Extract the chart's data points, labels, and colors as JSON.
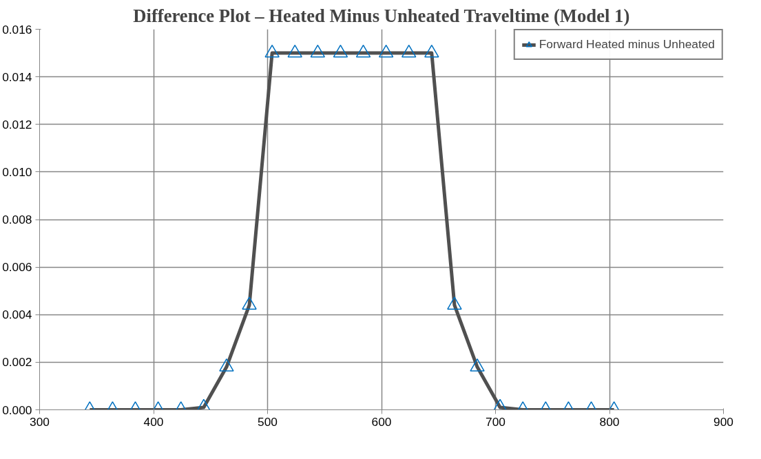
{
  "chart_data": {
    "type": "line",
    "title": "Difference Plot – Heated Minus Unheated Traveltime (Model 1)",
    "x": [
      344,
      364,
      384,
      404,
      424,
      444,
      464,
      484,
      504,
      524,
      544,
      564,
      584,
      604,
      624,
      644,
      664,
      684,
      704,
      724,
      744,
      764,
      784,
      804
    ],
    "series": [
      {
        "name": "Forward Heated minus Unheated",
        "color": "#505050",
        "colors": [
          "#0070c0",
          "#0070c0",
          "#0070c0",
          "#0070c0",
          "#0070c0",
          "#0070c0",
          "#0070c0",
          "#0070c0",
          "#0070c0",
          "#0070c0",
          "#0070c0",
          "#0070c0",
          "#0070c0",
          "#0070c0",
          "#0070c0",
          "#0070c0",
          "#0070c0",
          "#0070c0",
          "#0070c0",
          "#0070c0",
          "#0070c0",
          "#0070c0",
          "#0070c0",
          "#0070c0"
        ],
        "values": [
          0,
          0,
          0,
          0,
          0,
          0.0001,
          0.0018,
          0.0044,
          0.015,
          0.015,
          0.015,
          0.015,
          0.015,
          0.015,
          0.015,
          0.015,
          0.0044,
          0.0018,
          0.0001,
          0,
          0,
          0,
          0,
          0
        ]
      }
    ],
    "xlim": [
      300,
      900
    ],
    "xticks": [
      300,
      400,
      500,
      600,
      700,
      800,
      900
    ],
    "ylim": [
      0,
      0.016
    ],
    "yticks": [
      {
        "value": 0,
        "label": "0.000"
      },
      {
        "value": 0.002,
        "label": "0.002"
      },
      {
        "value": 0.004,
        "label": "0.004"
      },
      {
        "value": 0.006,
        "label": "0.006"
      },
      {
        "value": 0.008,
        "label": "0.008"
      },
      {
        "value": 0.01,
        "label": "0.010"
      },
      {
        "value": 0.012,
        "label": "0.012"
      },
      {
        "value": 0.014,
        "label": "0.014"
      },
      {
        "value": 0.016,
        "label": "0.016"
      }
    ],
    "grid": true,
    "legend": "top right",
    "marker": "triangle",
    "line_style": "solid"
  }
}
